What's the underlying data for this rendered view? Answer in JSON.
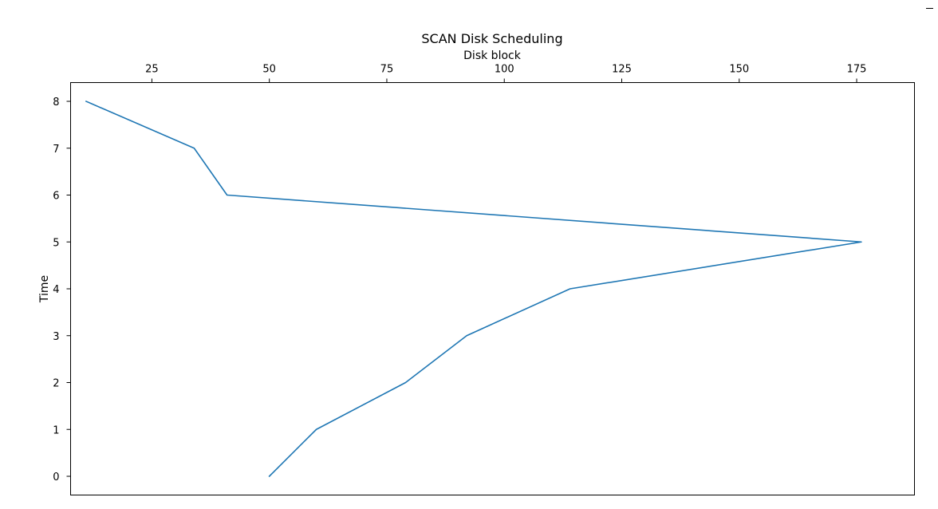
{
  "chart_data": {
    "type": "line",
    "title": "SCAN Disk Scheduling",
    "xlabel": "Disk block",
    "ylabel": "Time",
    "x_axis_position": "top",
    "y_axis_inverted": true,
    "xlim": [
      7.7,
      187.3
    ],
    "ylim": [
      8.4,
      -0.4
    ],
    "x_ticks": [
      25,
      50,
      75,
      100,
      125,
      150,
      175
    ],
    "y_ticks": [
      0,
      1,
      2,
      3,
      4,
      5,
      6,
      7,
      8
    ],
    "grid": false,
    "series": [
      {
        "x": [
          50,
          60,
          79,
          92,
          114,
          176,
          41,
          34,
          11
        ],
        "y": [
          0,
          1,
          2,
          3,
          4,
          5,
          6,
          7,
          8
        ],
        "color": "#1f77b4"
      }
    ]
  }
}
